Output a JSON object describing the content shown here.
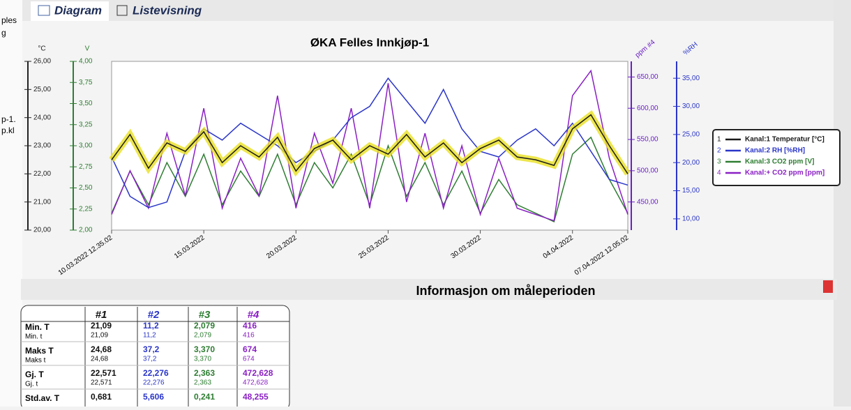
{
  "sidebar": [
    "ples",
    "g",
    "p-1.",
    "p.kl"
  ],
  "tabs": [
    "Diagram",
    "Listevisning"
  ],
  "chart_data": {
    "type": "line",
    "title": "ØKA Felles Innkjøp-1",
    "categories": [
      "10.03.2022 12.35.02",
      null,
      null,
      null,
      null,
      "15.03.2022",
      null,
      null,
      null,
      null,
      "20.03.2022",
      null,
      null,
      null,
      null,
      "25.03.2022",
      null,
      null,
      null,
      null,
      "30.03.2022",
      null,
      null,
      null,
      null,
      "04.04.2022",
      null,
      null,
      "07.04.2022 12.05.02"
    ],
    "axes": [
      {
        "label": "°C",
        "ylim": [
          20,
          26
        ],
        "yticks": [
          {
            "value": 20,
            "label": "20,00"
          },
          {
            "value": 21,
            "label": "21,00"
          },
          {
            "value": 22,
            "label": "22,00"
          },
          {
            "value": 23,
            "label": "23,00"
          },
          {
            "value": 24,
            "label": "24,00"
          },
          {
            "value": 25,
            "label": "25,00"
          },
          {
            "value": 26,
            "label": "26,00"
          }
        ]
      },
      {
        "label": "V",
        "ylim": [
          2,
          4
        ],
        "yticks": [
          {
            "value": 2,
            "label": "2,00"
          },
          {
            "value": 2.25,
            "label": "2,25"
          },
          {
            "value": 2.5,
            "label": "2,50"
          },
          {
            "value": 2.75,
            "label": "2,75"
          },
          {
            "value": 3,
            "label": "3,00"
          },
          {
            "value": 3.25,
            "label": "3,25"
          },
          {
            "value": 3.5,
            "label": "3,50"
          },
          {
            "value": 3.75,
            "label": "3,75"
          },
          {
            "value": 4,
            "label": "4,00"
          }
        ]
      },
      {
        "label": "ppm #4",
        "ylim": [
          405,
          675
        ],
        "yticks": [
          {
            "value": 450,
            "label": "450,00"
          },
          {
            "value": 500,
            "label": "500,00"
          },
          {
            "value": 550,
            "label": "550,00"
          },
          {
            "value": 600,
            "label": "600,00"
          },
          {
            "value": 650,
            "label": "650,00"
          }
        ]
      },
      {
        "label": "%RH",
        "ylim": [
          8,
          38
        ],
        "yticks": [
          {
            "value": 10,
            "label": "10,00"
          },
          {
            "value": 15,
            "label": "15,00"
          },
          {
            "value": 20,
            "label": "20,00"
          },
          {
            "value": 25,
            "label": "25,00"
          },
          {
            "value": 30,
            "label": "30,00"
          },
          {
            "value": 35,
            "label": "35,00"
          }
        ]
      }
    ],
    "series": [
      {
        "key": "1",
        "name": "Kanal:1 Temperatur [°C]",
        "color": "#1a1a1a",
        "glow": "#e8e020",
        "axis": 0,
        "values": [
          22.5,
          23.4,
          22.2,
          23.1,
          22.8,
          23.5,
          22.4,
          23.0,
          22.6,
          23.3,
          22.1,
          22.9,
          23.2,
          22.5,
          23.0,
          22.7,
          23.4,
          22.6,
          23.1,
          22.4,
          22.9,
          23.2,
          22.6,
          22.5,
          22.3,
          23.6,
          24.1,
          23.0,
          22.0
        ]
      },
      {
        "key": "2",
        "name": "Kanal:2 RH [%RH]",
        "color": "#2a35c8",
        "axis": 3,
        "values": [
          21,
          14,
          12,
          13,
          22,
          26,
          24,
          27,
          25,
          23,
          20,
          22,
          24,
          28,
          30,
          35,
          31,
          27,
          33,
          26,
          22,
          21,
          24,
          26,
          23,
          27,
          22,
          17,
          16
        ]
      },
      {
        "key": "3",
        "name": "Kanal:3 CO2 ppm [V]",
        "color": "#2e7d32",
        "axis": 1,
        "values": [
          2.2,
          2.7,
          2.3,
          2.8,
          2.4,
          2.9,
          2.3,
          2.7,
          2.4,
          2.9,
          2.3,
          2.8,
          2.5,
          2.9,
          2.3,
          3.0,
          2.4,
          2.8,
          2.3,
          2.7,
          2.2,
          2.6,
          2.3,
          2.2,
          2.1,
          2.9,
          3.1,
          2.6,
          2.2
        ]
      },
      {
        "key": "4",
        "name": "Kanal:+ CO2 ppm [ppm]",
        "color": "#8a1fc4",
        "axis": 2,
        "values": [
          430,
          500,
          440,
          560,
          460,
          600,
          440,
          520,
          460,
          620,
          440,
          560,
          480,
          600,
          440,
          640,
          450,
          560,
          440,
          540,
          430,
          520,
          440,
          430,
          420,
          620,
          660,
          520,
          430
        ]
      }
    ]
  },
  "info": {
    "title": "Informasjon om måleperioden",
    "headers": [
      "#1",
      "#2",
      "#3",
      "#4"
    ],
    "rows": [
      {
        "label": "Min. T",
        "sublabel": "Min. t",
        "values": [
          "21,09",
          "11,2",
          "2,079",
          "416"
        ],
        "subvalues": [
          "21,09",
          "11,2",
          "2,079",
          "416"
        ]
      },
      {
        "label": "Maks T",
        "sublabel": "Maks t",
        "values": [
          "24,68",
          "37,2",
          "3,370",
          "674"
        ],
        "subvalues": [
          "24,68",
          "37,2",
          "3,370",
          "674"
        ]
      },
      {
        "label": "Gj. T",
        "sublabel": "Gj. t",
        "values": [
          "22,571",
          "22,276",
          "2,363",
          "472,628"
        ],
        "subvalues": [
          "22,571",
          "22,276",
          "2,363",
          "472,628"
        ]
      },
      {
        "label": "Std.av. T",
        "values": [
          "0,681",
          "5,606",
          "0,241",
          "48,255"
        ]
      }
    ]
  }
}
